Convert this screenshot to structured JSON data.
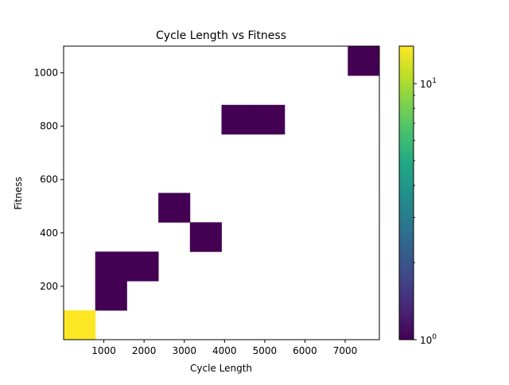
{
  "chart_data": {
    "type": "heatmap",
    "title": "Cycle Length vs Fitness",
    "xlabel": "Cycle Length",
    "ylabel": "Fitness",
    "xlim": [
      0,
      7850
    ],
    "ylim": [
      0,
      1100
    ],
    "xticks": [
      1000,
      2000,
      3000,
      4000,
      5000,
      6000,
      7000
    ],
    "yticks": [
      200,
      400,
      600,
      800,
      1000
    ],
    "bin_width_x": 785,
    "bin_height_y": 110,
    "colorscale": "viridis",
    "colorbar": {
      "scale": "log",
      "range": [
        1,
        14
      ],
      "major_labels": [
        {
          "value": 1,
          "base": "10",
          "exp": "0"
        },
        {
          "value": 10,
          "base": "10",
          "exp": "1"
        }
      ],
      "minor_ticks": [
        2,
        3,
        4,
        5,
        6,
        7,
        8,
        9
      ]
    },
    "cells": [
      {
        "x0": 0,
        "x1": 785,
        "y0": 0,
        "y1": 110,
        "count": 14
      },
      {
        "x0": 785,
        "x1": 1570,
        "y0": 110,
        "y1": 220,
        "count": 1
      },
      {
        "x0": 785,
        "x1": 1570,
        "y0": 220,
        "y1": 330,
        "count": 1
      },
      {
        "x0": 1570,
        "x1": 2355,
        "y0": 220,
        "y1": 330,
        "count": 1
      },
      {
        "x0": 2355,
        "x1": 3140,
        "y0": 440,
        "y1": 550,
        "count": 1
      },
      {
        "x0": 3140,
        "x1": 3925,
        "y0": 330,
        "y1": 440,
        "count": 1
      },
      {
        "x0": 3925,
        "x1": 4710,
        "y0": 770,
        "y1": 880,
        "count": 1
      },
      {
        "x0": 4710,
        "x1": 5495,
        "y0": 770,
        "y1": 880,
        "count": 1
      },
      {
        "x0": 7065,
        "x1": 7850,
        "y0": 990,
        "y1": 1100,
        "count": 1
      }
    ]
  }
}
